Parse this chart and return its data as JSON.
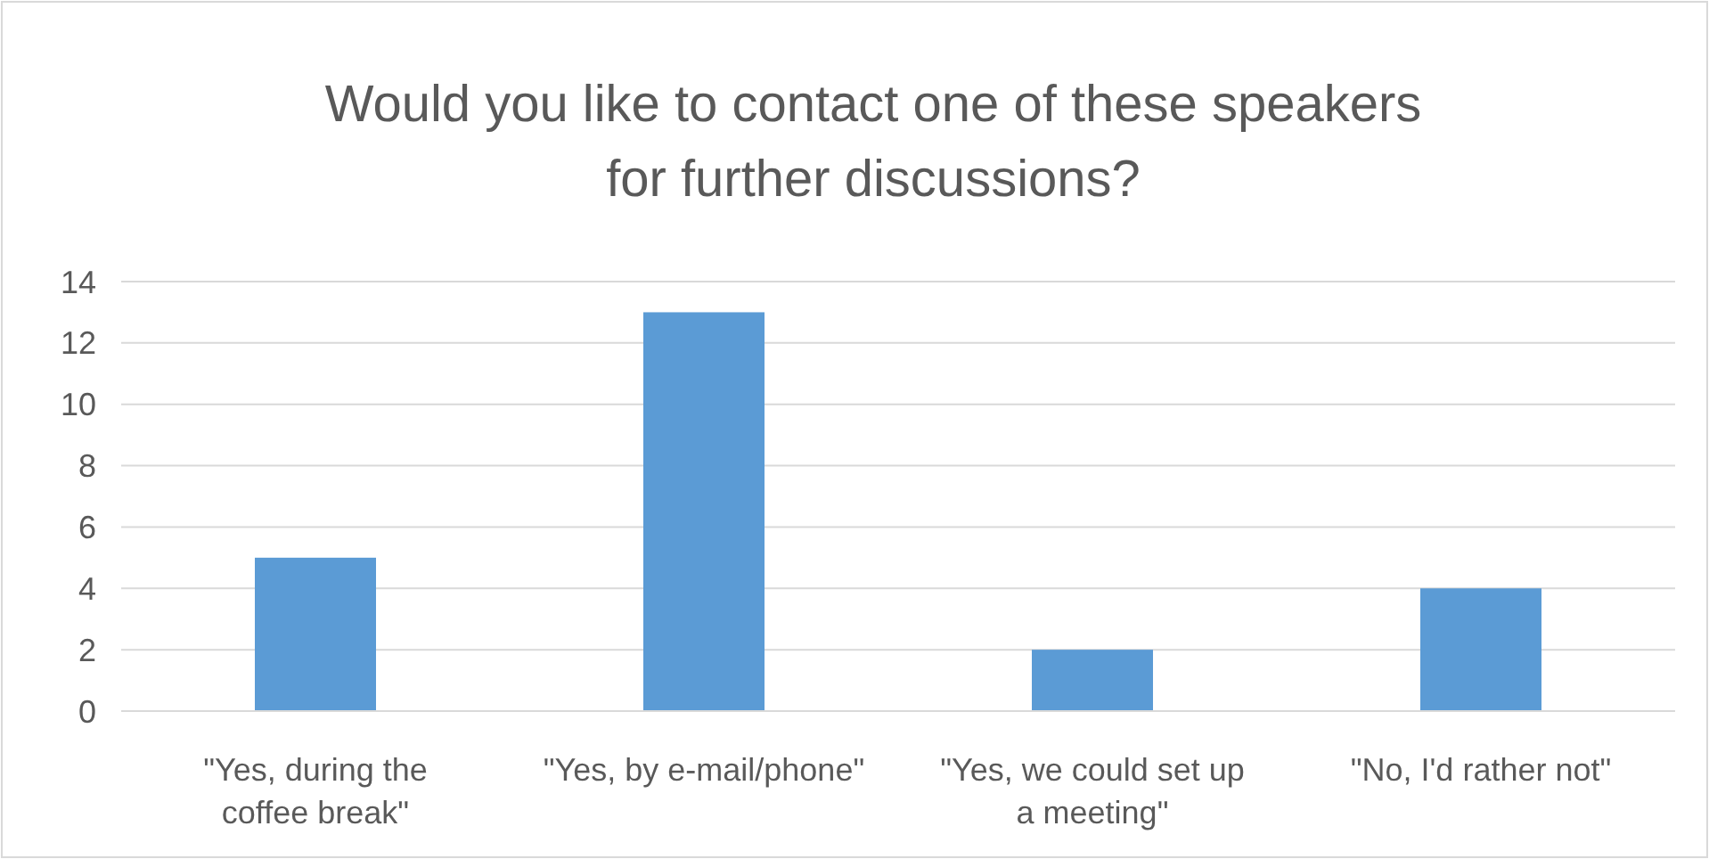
{
  "chart_data": {
    "type": "bar",
    "title": "Would you like to contact one of these speakers for further discussions?",
    "categories": [
      "\"Yes, during the coffee break\"",
      "\"Yes, by e-mail/phone\"",
      "\"Yes, we could set up a meeting\"",
      "\"No, I'd rather not\""
    ],
    "values": [
      5,
      13,
      2,
      4
    ],
    "color": "#5b9bd5",
    "ylim": [
      0,
      14
    ],
    "yticks": [
      0,
      2,
      4,
      6,
      8,
      10,
      12,
      14
    ],
    "grid": "y"
  }
}
